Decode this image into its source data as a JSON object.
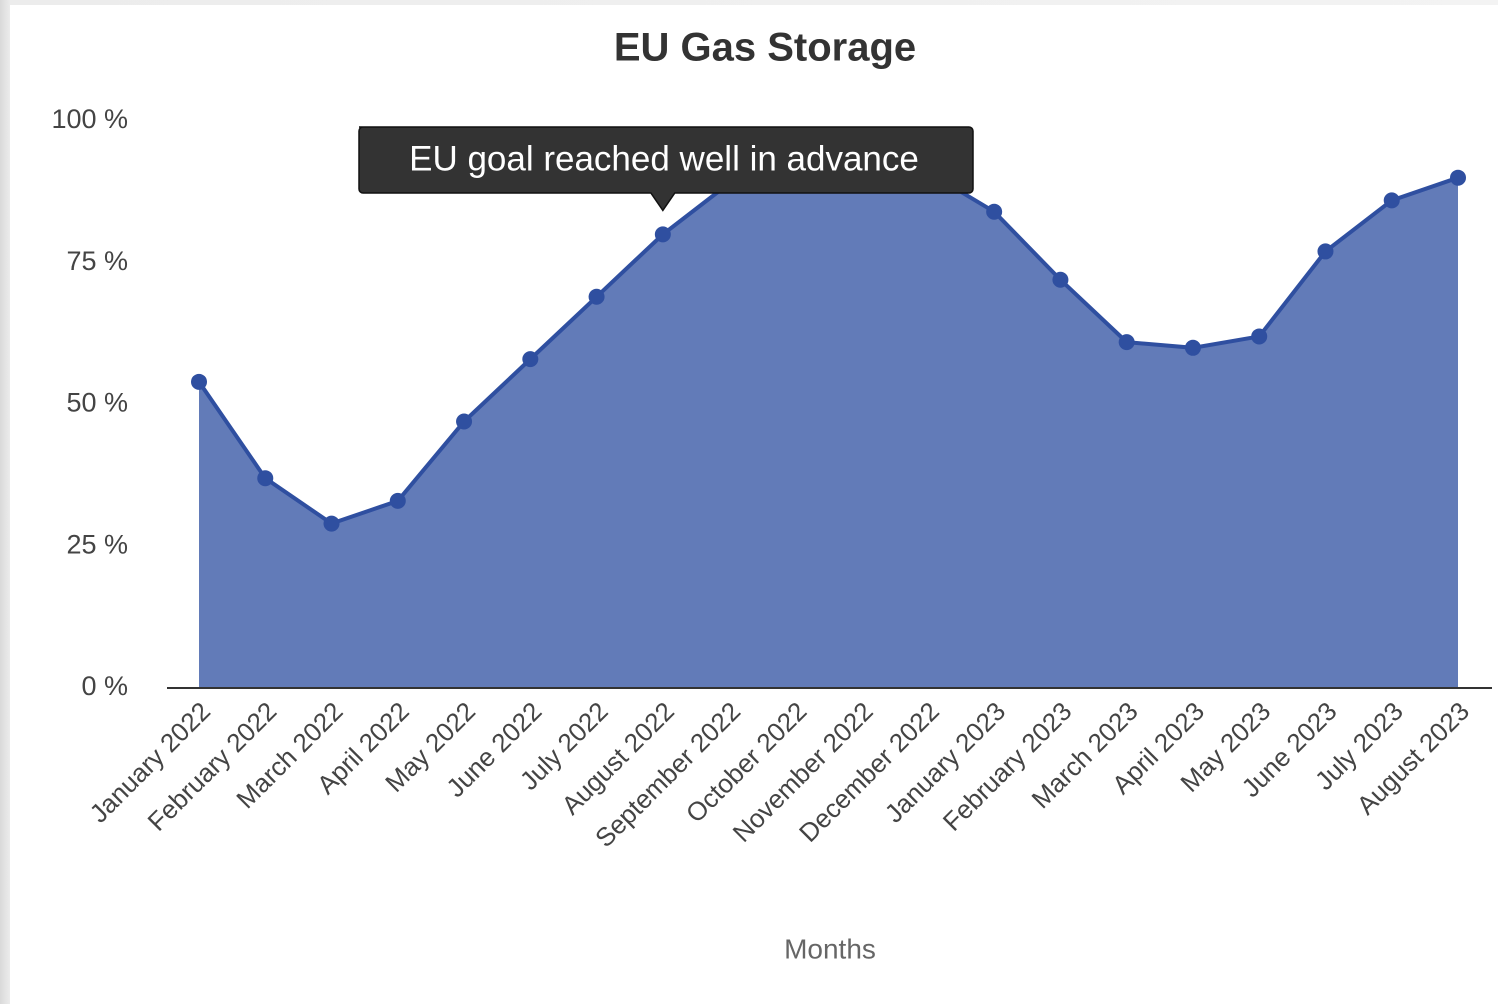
{
  "chart_data": {
    "type": "area",
    "title": "EU Gas Storage",
    "x_label": "Months",
    "categories": [
      "January 2022",
      "February 2022",
      "March 2022",
      "April 2022",
      "May 2022",
      "June 2022",
      "July 2022",
      "August 2022",
      "September 2022",
      "October 2022",
      "November 2022",
      "December 2022",
      "January 2023",
      "February 2023",
      "March 2023",
      "April 2023",
      "May 2023",
      "June 2023",
      "July 2023",
      "August 2023"
    ],
    "values": [
      54,
      37,
      29,
      33,
      47,
      58,
      69,
      80,
      89,
      95,
      96,
      91,
      84,
      72,
      61,
      60,
      62,
      77,
      86,
      90
    ],
    "color": "#627bb8",
    "line_color": "#2f4fa0",
    "ylim": [
      0,
      100
    ],
    "yticks": [
      {
        "value": 0,
        "label": "0 %"
      },
      {
        "value": 25,
        "label": "25 %"
      },
      {
        "value": 50,
        "label": "50 %"
      },
      {
        "value": 75,
        "label": "75 %"
      },
      {
        "value": 100,
        "label": "100 %"
      }
    ],
    "grid": false,
    "annotation": "EU goal reached well in advance"
  }
}
